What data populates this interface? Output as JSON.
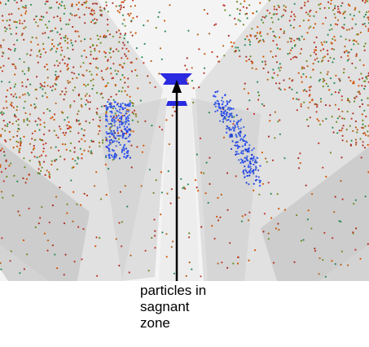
{
  "annotation": {
    "lines": [
      "particles in",
      "sagnant",
      "zone"
    ]
  }
}
